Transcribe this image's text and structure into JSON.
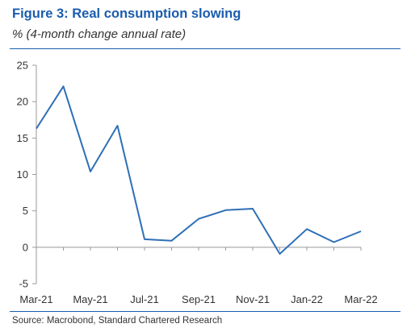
{
  "header": {
    "title": "Figure 3: Real consumption slowing",
    "subtitle": "% (4-month change annual rate)"
  },
  "footer": {
    "source": "Source: Macrobond, Standard Chartered Research"
  },
  "colors": {
    "title": "#1a5dad",
    "line": "#2e6fb7",
    "rule": "#1a5dad",
    "axis": "#999999"
  },
  "chart_data": {
    "type": "line",
    "title": "Figure 3: Real consumption slowing",
    "subtitle": "% (4-month change annual rate)",
    "xlabel": "",
    "ylabel": "",
    "ylim": [
      -5,
      25
    ],
    "y_ticks": [
      "25",
      "20",
      "15",
      "10",
      "5",
      "0",
      "-5"
    ],
    "x_tick_labels": [
      "Mar-21",
      "May-21",
      "Jul-21",
      "Sep-21",
      "Nov-21",
      "Jan-22",
      "Mar-22"
    ],
    "x": [
      "Mar-21",
      "Apr-21",
      "May-21",
      "Jun-21",
      "Jul-21",
      "Aug-21",
      "Sep-21",
      "Oct-21",
      "Nov-21",
      "Dec-21",
      "Jan-22",
      "Feb-22",
      "Mar-22"
    ],
    "series": [
      {
        "values": [
          16.3,
          22.1,
          10.4,
          16.7,
          1.1,
          0.9,
          3.9,
          5.1,
          5.3,
          -0.9,
          2.5,
          0.7,
          2.2
        ]
      }
    ],
    "grid": false,
    "legend": "none"
  }
}
